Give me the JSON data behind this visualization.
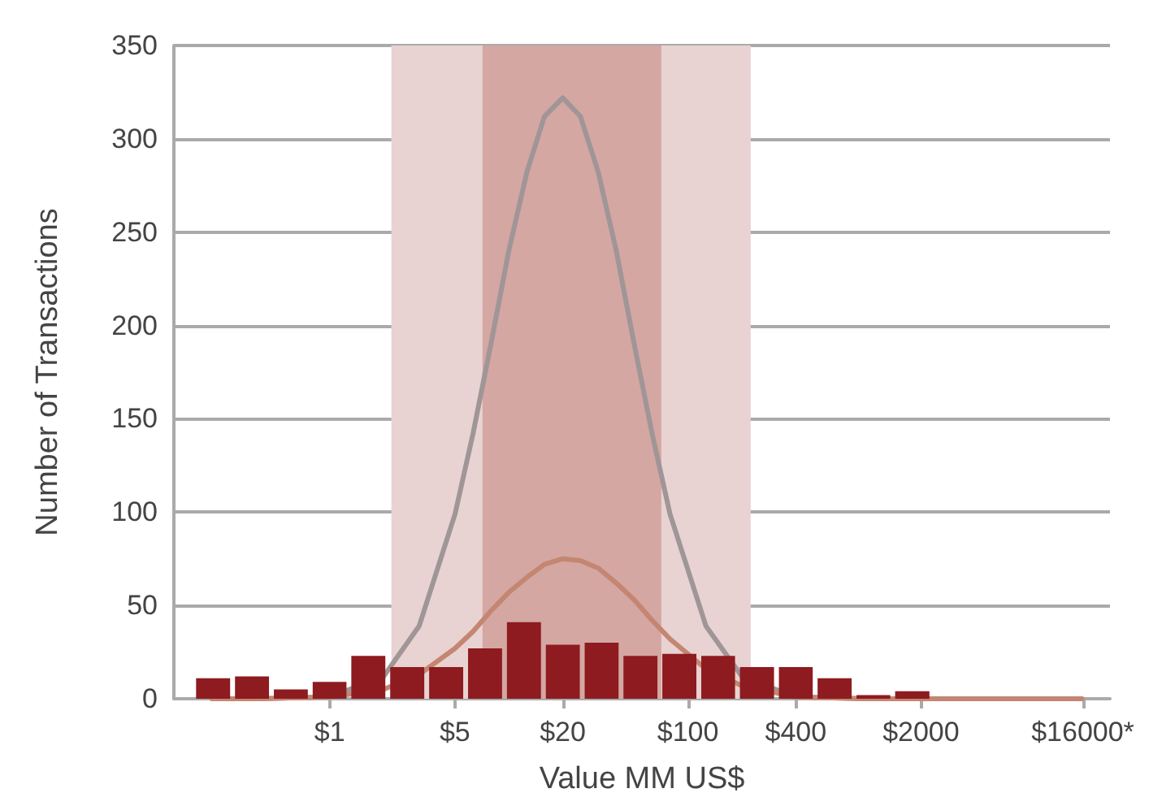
{
  "chart_data": {
    "type": "histogram",
    "xlabel": "Value MM US$",
    "ylabel": "Number of Transactions",
    "bins": [
      0.174,
      0.287,
      0.473,
      0.779,
      1.28,
      2.11,
      3.48,
      5.74,
      9.46,
      15.6,
      25.7,
      42.3,
      69.7,
      115,
      189,
      312,
      513,
      846,
      1390,
      2300
    ],
    "values": [
      11,
      12,
      5,
      9,
      23,
      17,
      17,
      27,
      41,
      29,
      30,
      23,
      24,
      23,
      17,
      17,
      11,
      2,
      4
    ],
    "color": "#8e1b1f",
    "series": [
      {
        "type": "line",
        "color": "#a09597",
        "x": [
          0.22,
          0.4,
          1,
          2,
          3.16,
          5.01,
          6.31,
          7.94,
          10,
          12.6,
          15.8,
          20,
          25.1,
          31.6,
          39.8,
          50.1,
          63.1,
          79.4,
          126,
          200,
          398,
          1000,
          3160,
          15800
        ],
        "values": [
          0,
          0,
          1,
          12,
          39,
          99,
          142,
          190,
          240,
          282,
          312,
          322,
          312,
          282,
          240,
          190,
          142,
          99,
          39,
          12,
          1,
          0,
          0,
          0
        ]
      },
      {
        "type": "line",
        "color": "#c48672",
        "x": [
          0.22,
          0.4,
          1,
          2,
          3.16,
          5.01,
          6.31,
          7.94,
          10,
          12.6,
          15.8,
          20,
          25.1,
          31.6,
          39.8,
          50.1,
          63.1,
          79.4,
          126,
          200,
          398,
          1000,
          3160,
          15800
        ],
        "values": [
          0,
          0,
          1,
          5,
          13,
          27,
          36,
          47,
          57,
          65,
          72,
          75,
          74,
          70,
          62,
          53,
          42,
          32,
          16,
          7,
          1,
          0,
          0,
          0
        ]
      }
    ],
    "log": "x",
    "xlim": [
      0.135,
      22700
    ],
    "xticks": [
      {
        "value": 1,
        "label": "$1"
      },
      {
        "value": 5,
        "label": "$5"
      },
      {
        "value": 20,
        "label": "$20"
      },
      {
        "value": 100,
        "label": "$100"
      },
      {
        "value": 400,
        "label": "$400"
      },
      {
        "value": 2000,
        "label": "$2000"
      },
      {
        "value": 16000,
        "label": "$16000*"
      }
    ],
    "ylim": [
      0,
      350
    ],
    "yticks": [
      0,
      50,
      100,
      150,
      200,
      250,
      300,
      350
    ],
    "bands": [
      {
        "axis": "x",
        "from": 2.21,
        "to": 224,
        "color": "#e8d3d2"
      },
      {
        "axis": "x",
        "from": 7.13,
        "to": 71,
        "color": "#d4a7a2"
      }
    ],
    "grid": "y"
  }
}
